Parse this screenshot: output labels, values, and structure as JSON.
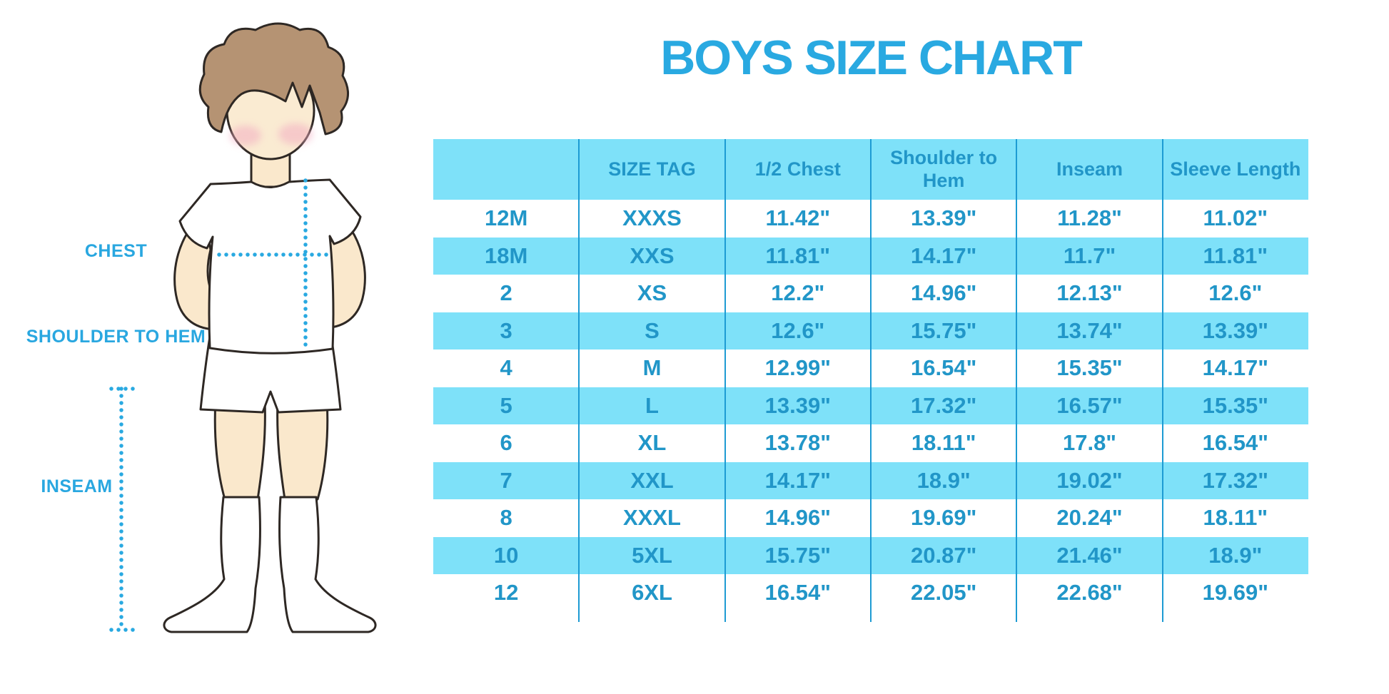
{
  "title": "BOYS SIZE CHART",
  "diagram": {
    "labels": {
      "chest": "CHEST",
      "shoulder_to_hem": "SHOULDER TO HEM",
      "inseam": "INSEAM"
    }
  },
  "table": {
    "columns": [
      "",
      "SIZE TAG",
      "1/2 Chest",
      "Shoulder to Hem",
      "Inseam",
      "Sleeve Length"
    ],
    "rows": [
      [
        "12M",
        "XXXS",
        "11.42\"",
        "13.39\"",
        "11.28\"",
        "11.02\""
      ],
      [
        "18M",
        "XXS",
        "11.81\"",
        "14.17\"",
        "11.7\"",
        "11.81\""
      ],
      [
        "2",
        "XS",
        "12.2\"",
        "14.96\"",
        "12.13\"",
        "12.6\""
      ],
      [
        "3",
        "S",
        "12.6\"",
        "15.75\"",
        "13.74\"",
        "13.39\""
      ],
      [
        "4",
        "M",
        "12.99\"",
        "16.54\"",
        "15.35\"",
        "14.17\""
      ],
      [
        "5",
        "L",
        "13.39\"",
        "17.32\"",
        "16.57\"",
        "15.35\""
      ],
      [
        "6",
        "XL",
        "13.78\"",
        "18.11\"",
        "17.8\"",
        "16.54\""
      ],
      [
        "7",
        "XXL",
        "14.17\"",
        "18.9\"",
        "19.02\"",
        "17.32\""
      ],
      [
        "8",
        "XXXL",
        "14.96\"",
        "19.69\"",
        "20.24\"",
        "18.11\""
      ],
      [
        "10",
        "5XL",
        "15.75\"",
        "20.87\"",
        "21.46\"",
        "18.9\""
      ],
      [
        "12",
        "6XL",
        "16.54\"",
        "22.05\"",
        "22.68\"",
        "19.69\""
      ]
    ]
  },
  "colors": {
    "accent": "#29A9E1",
    "table_text": "#2196C8",
    "row_alt": "#7EE1F9",
    "divider": "#1D9BD3",
    "hair": "#B59373",
    "skin": "#FAE8CC",
    "outline": "#2E2824"
  }
}
